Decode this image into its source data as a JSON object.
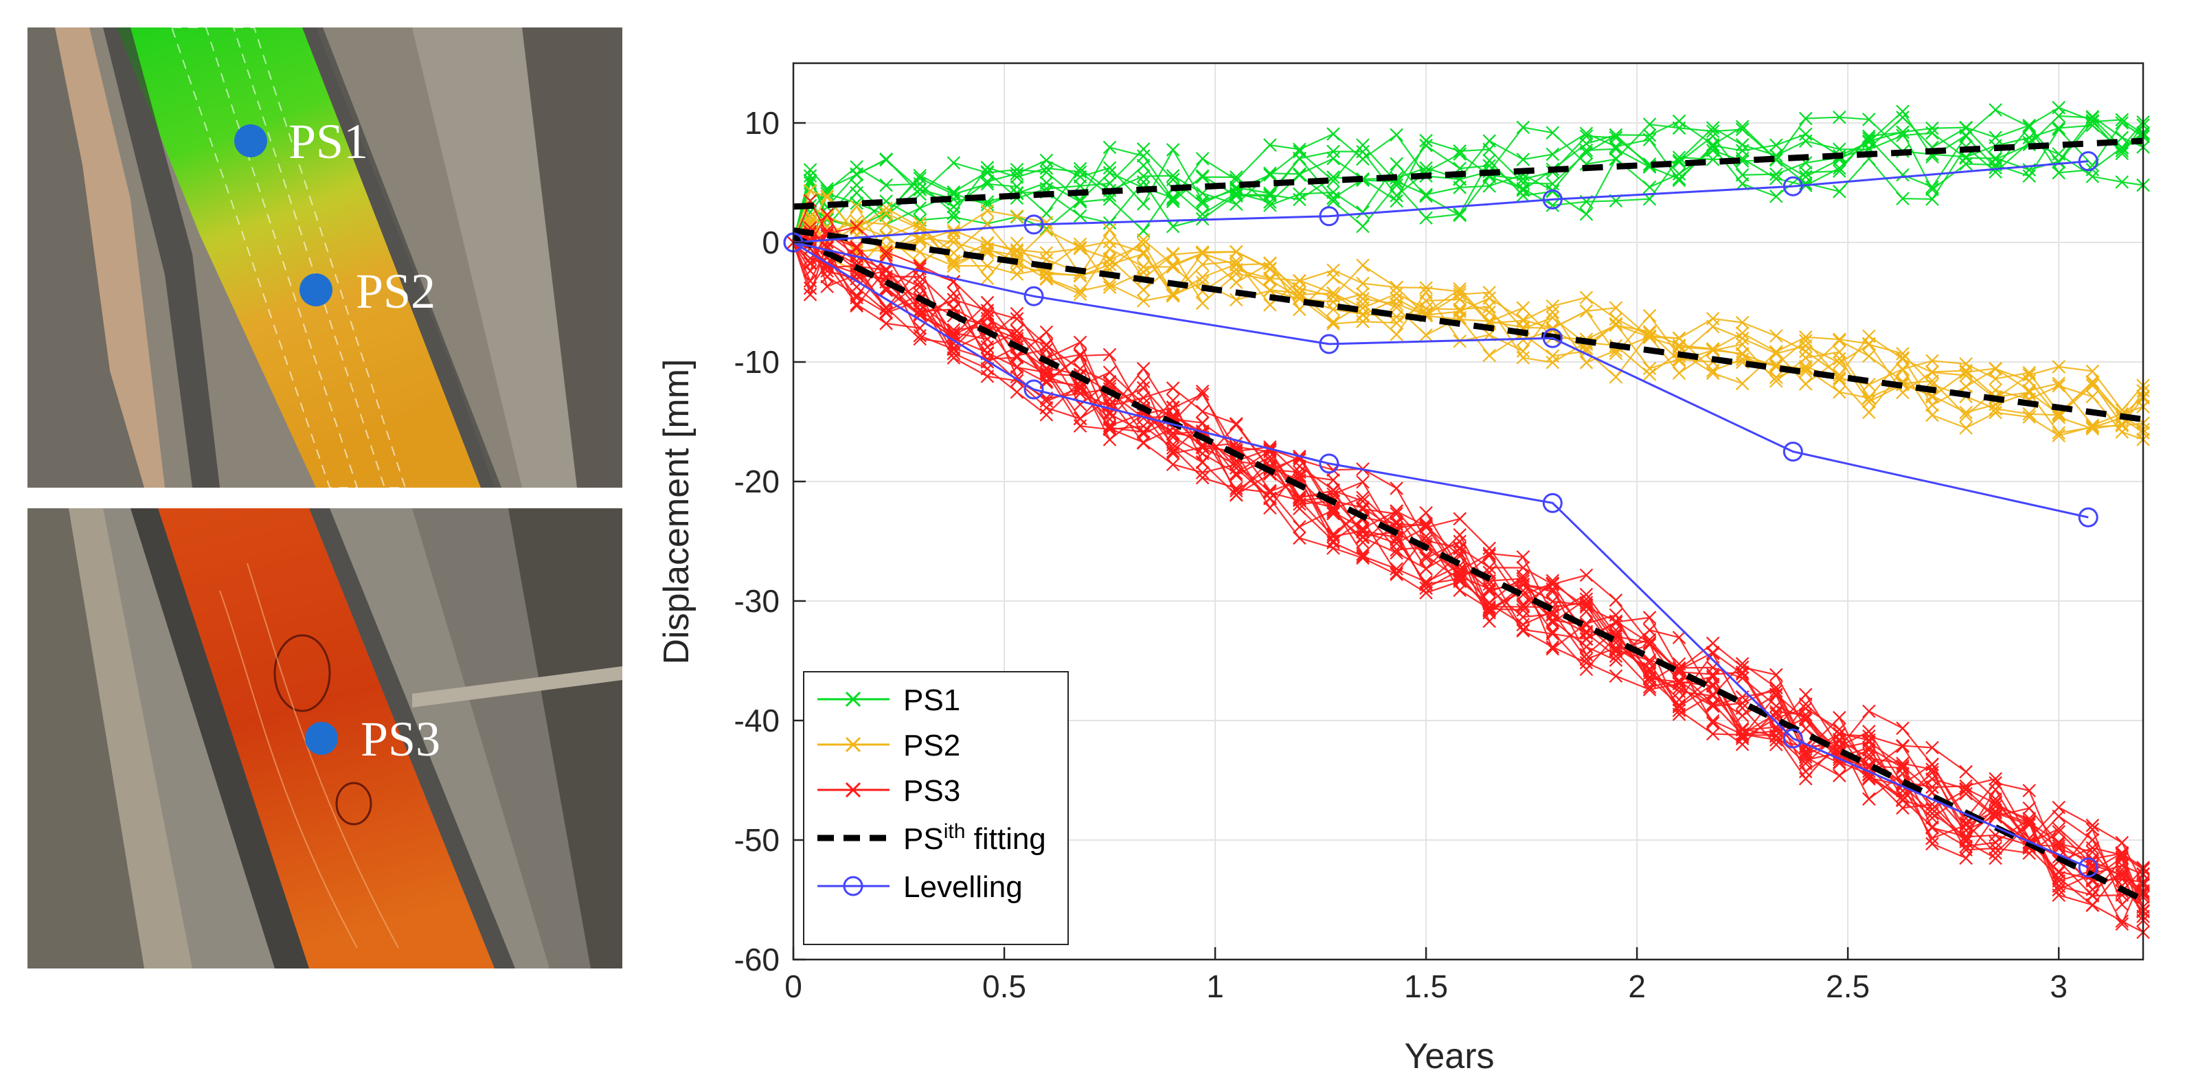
{
  "maps": {
    "top": {
      "labels": [
        "PS1",
        "PS2"
      ]
    },
    "bottom": {
      "labels": [
        "PS3"
      ]
    },
    "marker_color": "#1f6fd1"
  },
  "chart_data": {
    "type": "line",
    "xlabel": "Years",
    "ylabel": "Displacement [mm]",
    "xlim": [
      0,
      3.2
    ],
    "ylim": [
      -60,
      15
    ],
    "xticks": [
      "0",
      "0.5",
      "1",
      "1.5",
      "2",
      "2.5",
      "3"
    ],
    "yticks": [
      "10",
      "0",
      "-10",
      "-20",
      "-30",
      "-40",
      "-50",
      "-60"
    ],
    "grid": true,
    "legend_position": "bottom-left",
    "legend": {
      "ps1": "PS1",
      "ps2": "PS2",
      "ps3": "PS3",
      "fit_base": "PS",
      "fit_sup": "ith",
      "fit_tail": " fitting",
      "levelling": "Levelling"
    },
    "x": [
      0,
      0.04,
      0.08,
      0.15,
      0.22,
      0.3,
      0.38,
      0.46,
      0.53,
      0.6,
      0.68,
      0.75,
      0.83,
      0.9,
      0.97,
      1.05,
      1.13,
      1.2,
      1.28,
      1.35,
      1.43,
      1.5,
      1.58,
      1.65,
      1.73,
      1.8,
      1.88,
      1.95,
      2.03,
      2.1,
      2.18,
      2.25,
      2.33,
      2.4,
      2.48,
      2.55,
      2.63,
      2.7,
      2.78,
      2.85,
      2.93,
      3.0,
      3.08,
      3.15,
      3.2
    ],
    "series": [
      {
        "name": "PS1",
        "color": "#00dd22",
        "marker": "x",
        "count": 8,
        "trend": [
          3.0,
          8.5
        ],
        "noise": 2.6
      },
      {
        "name": "PS2",
        "color": "#f2b517",
        "marker": "x",
        "count": 9,
        "trend": [
          1.5,
          -14.5
        ],
        "noise": 2.2
      },
      {
        "name": "PS3",
        "color": "#ff1a1a",
        "marker": "x",
        "count": 18,
        "trend": [
          0,
          -54.5
        ],
        "noise": 2.8
      }
    ],
    "fits": [
      {
        "x": [
          0,
          3.2
        ],
        "y": [
          3.0,
          8.5
        ]
      },
      {
        "x": [
          0,
          3.2
        ],
        "y": [
          1.0,
          -14.8
        ]
      },
      {
        "x": [
          0,
          3.2
        ],
        "y": [
          0.5,
          -55.0
        ]
      }
    ],
    "fit_color": "#000000",
    "levelling": [
      {
        "color": "#4444ff",
        "x": [
          0,
          0.57,
          1.27,
          1.8,
          2.37,
          3.07
        ],
        "y": [
          0,
          1.5,
          2.2,
          3.6,
          4.7,
          6.8
        ]
      },
      {
        "color": "#4444ff",
        "x": [
          0,
          0.57,
          1.27,
          1.8,
          2.37,
          3.07
        ],
        "y": [
          0,
          -4.5,
          -8.5,
          -8.0,
          -17.5,
          -23.0
        ]
      },
      {
        "color": "#4444ff",
        "x": [
          0,
          0.57,
          1.27,
          1.8,
          2.37,
          3.07
        ],
        "y": [
          0,
          -12.3,
          -18.5,
          -21.8,
          -41.5,
          -52.3
        ]
      }
    ]
  }
}
